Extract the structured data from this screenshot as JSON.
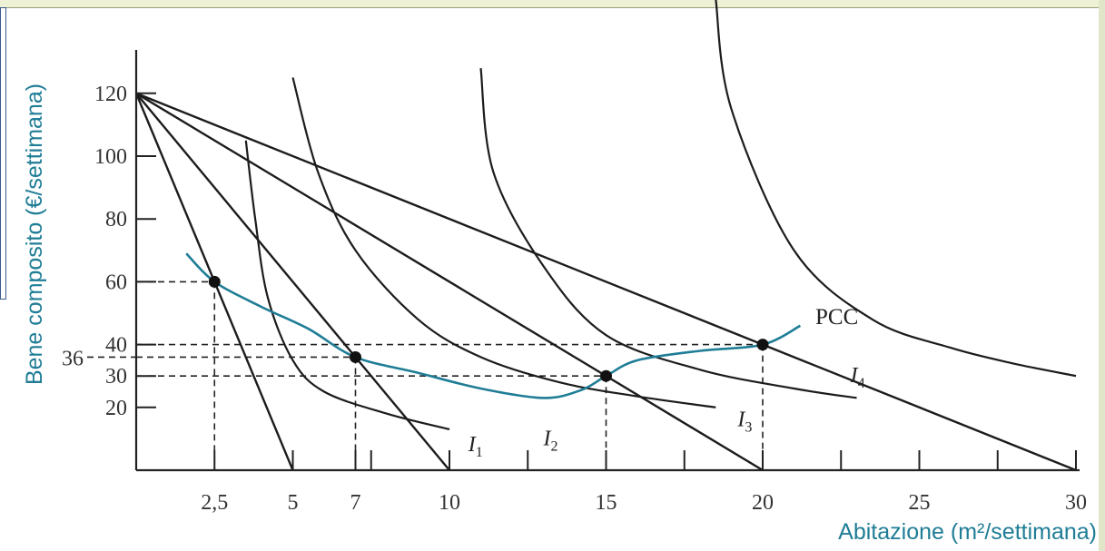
{
  "chart_data": {
    "type": "line",
    "xlabel": "Abitazione (m²/settimana)",
    "ylabel": "Bene composito (€/settimana)",
    "xlim": [
      0,
      30
    ],
    "ylim": [
      0,
      130
    ],
    "x_ticks": [
      2.5,
      5,
      7,
      10,
      15,
      20,
      25,
      30
    ],
    "x_tick_labels": [
      "2,5",
      "5",
      "7",
      "10",
      "15",
      "20",
      "25",
      "30"
    ],
    "x_minor_ticks": [
      7.5,
      12.5,
      17.5,
      22.5,
      27.5
    ],
    "y_ticks": [
      20,
      30,
      40,
      60,
      80,
      100,
      120
    ],
    "y_tick_labels": [
      "20",
      "30",
      "40",
      "60",
      "80",
      "100",
      "120"
    ],
    "y_extra_label": {
      "value": 36,
      "text": "36"
    },
    "grid": false,
    "budget_lines": [
      {
        "from": [
          0,
          120
        ],
        "to": [
          5,
          0
        ]
      },
      {
        "from": [
          0,
          120
        ],
        "to": [
          10,
          0
        ]
      },
      {
        "from": [
          0,
          120
        ],
        "to": [
          20,
          0
        ]
      },
      {
        "from": [
          0,
          120
        ],
        "to": [
          30,
          0
        ]
      }
    ],
    "equilibria": [
      {
        "x": 2.5,
        "y": 60
      },
      {
        "x": 7,
        "y": 36
      },
      {
        "x": 15,
        "y": 30
      },
      {
        "x": 20,
        "y": 40
      }
    ],
    "indifference_curves": [
      {
        "label": "I",
        "subscript": "1",
        "points": [
          [
            3.5,
            105
          ],
          [
            3.8,
            80
          ],
          [
            4.2,
            55
          ],
          [
            5,
            35
          ],
          [
            6,
            25
          ],
          [
            8,
            18
          ],
          [
            10,
            13
          ]
        ]
      },
      {
        "label": "I",
        "subscript": "2",
        "points": [
          [
            5,
            125
          ],
          [
            5.8,
            95
          ],
          [
            7,
            70
          ],
          [
            9,
            48
          ],
          [
            11,
            36
          ],
          [
            13.5,
            28
          ],
          [
            16,
            23.5
          ],
          [
            18.5,
            20
          ]
        ]
      },
      {
        "label": "I",
        "subscript": "3",
        "points": [
          [
            11,
            128
          ],
          [
            11.4,
            95
          ],
          [
            13,
            65
          ],
          [
            15,
            43
          ],
          [
            18,
            32
          ],
          [
            21,
            26
          ],
          [
            23,
            23
          ]
        ]
      },
      {
        "label": "I",
        "subscript": "4",
        "points": [
          [
            18.5,
            150
          ],
          [
            19,
            115
          ],
          [
            21,
            70
          ],
          [
            23.5,
            48
          ],
          [
            26,
            39
          ],
          [
            28,
            34
          ],
          [
            30,
            30
          ]
        ]
      }
    ],
    "curve_labels": [
      {
        "text": "I",
        "sub": "1"
      },
      {
        "text": "I",
        "sub": "2"
      },
      {
        "text": "I",
        "sub": "3"
      },
      {
        "text": "I",
        "sub": "4"
      }
    ],
    "pcc": {
      "label": "PCC",
      "points": [
        [
          1.6,
          69
        ],
        [
          2.5,
          60
        ],
        [
          4,
          52
        ],
        [
          5.5,
          45
        ],
        [
          7,
          36
        ],
        [
          9,
          31
        ],
        [
          11,
          26
        ],
        [
          13,
          23
        ],
        [
          14.2,
          25.5
        ],
        [
          15,
          30
        ],
        [
          16,
          35
        ],
        [
          18,
          38
        ],
        [
          20,
          40
        ],
        [
          21.2,
          46
        ]
      ]
    }
  },
  "labels": {
    "pcc": "PCC",
    "x_axis": "Abitazione (m²/settimana)",
    "y_axis": "Bene composito (€/settimana)"
  }
}
